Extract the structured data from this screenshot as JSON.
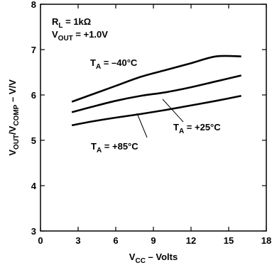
{
  "chart_data": {
    "type": "line",
    "title": "",
    "xlabel": {
      "main": "V",
      "sub": "CC",
      "suffix": " – Volts"
    },
    "ylabel": {
      "p1": "V",
      "s1": "OUT",
      "p2": "/V",
      "s2": "COMP",
      "p3": " – V/V"
    },
    "xlim": [
      0,
      18
    ],
    "ylim": [
      3,
      8
    ],
    "xticks": [
      0,
      3,
      6,
      9,
      12,
      15,
      18
    ],
    "yticks": [
      3,
      4,
      5,
      6,
      7,
      8
    ],
    "x_tick_labels": [
      "0",
      "3",
      "6",
      "9",
      "12",
      "15",
      "18"
    ],
    "y_tick_labels": [
      "3",
      "4",
      "5",
      "6",
      "7",
      "8"
    ],
    "grid": false,
    "color": "#000000",
    "conditions": [
      {
        "prefix": "R",
        "sub": "L",
        "text": " = 1kΩ"
      },
      {
        "prefix": "V",
        "sub": "OUT",
        "text": " = +1.0V"
      }
    ],
    "series": [
      {
        "label": {
          "prefix": "T",
          "sub": "A",
          "text": " = –40°C"
        },
        "x": [
          2.5,
          4,
          6,
          8,
          10,
          12,
          14,
          16
        ],
        "y": [
          5.85,
          6.0,
          6.2,
          6.4,
          6.55,
          6.7,
          6.85,
          6.85
        ]
      },
      {
        "label": {
          "prefix": "T",
          "sub": "A",
          "text": " = +25°C"
        },
        "x": [
          2.5,
          4,
          6,
          8,
          10,
          12,
          14,
          16
        ],
        "y": [
          5.62,
          5.73,
          5.87,
          5.98,
          6.06,
          6.17,
          6.3,
          6.43
        ]
      },
      {
        "label": {
          "prefix": "T",
          "sub": "A",
          "text": " = +85°C"
        },
        "x": [
          2.5,
          4,
          6,
          8,
          10,
          12,
          14,
          16
        ],
        "y": [
          5.33,
          5.41,
          5.5,
          5.58,
          5.67,
          5.77,
          5.87,
          5.98
        ]
      }
    ]
  }
}
